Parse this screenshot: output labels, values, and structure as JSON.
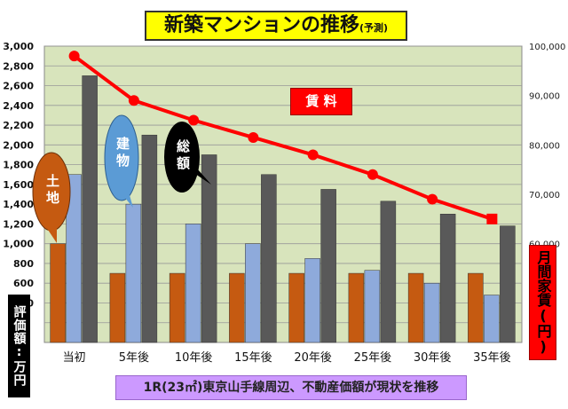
{
  "title": {
    "main": "新築マンションの推移",
    "sub": "(予測)"
  },
  "left_axis_label": "評価額:万円",
  "right_axis_label": "月間家賃(円)",
  "footnote": "1R(23㎡)東京山手線周辺、不動産価額が現状を推移",
  "callouts": {
    "land": "土地",
    "building": "建物",
    "total": "総額",
    "rent": "賃 料"
  },
  "chart_data": {
    "type": "bar",
    "title": "新築マンションの推移",
    "categories": [
      "当初",
      "5年後",
      "10年後",
      "15年後",
      "20年後",
      "25年後",
      "30年後",
      "35年後"
    ],
    "series": [
      {
        "name": "土地",
        "type": "bar",
        "axis": "left",
        "values": [
          1000,
          700,
          700,
          700,
          700,
          700,
          700,
          700
        ]
      },
      {
        "name": "建物",
        "type": "bar",
        "axis": "left",
        "values": [
          1700,
          1400,
          1200,
          1000,
          850,
          730,
          600,
          480
        ]
      },
      {
        "name": "総額",
        "type": "bar",
        "axis": "left",
        "values": [
          2700,
          2100,
          1900,
          1700,
          1550,
          1430,
          1300,
          1180
        ]
      },
      {
        "name": "賃料",
        "type": "line",
        "axis": "right",
        "values": [
          98000,
          89000,
          85000,
          81500,
          78000,
          74000,
          69000,
          65000
        ]
      }
    ],
    "ylim": [
      0,
      3000
    ],
    "y_ticks": [
      200,
      400,
      600,
      800,
      1000,
      1200,
      1400,
      1600,
      1800,
      2000,
      2200,
      2400,
      2600,
      2800,
      3000
    ],
    "y_tick_labels": [
      "",
      "400",
      "600",
      "800",
      "1,000",
      "1,200",
      "1,400",
      "1,600",
      "1,800",
      "2,000",
      "2,200",
      "2,400",
      "2,600",
      "2,800",
      "3,000"
    ],
    "y2lim": [
      40000,
      100000
    ],
    "y2_ticks": [
      60000,
      70000,
      80000,
      90000,
      100000
    ],
    "y2_tick_labels": [
      "60,000",
      "70,000",
      "80,000",
      "90,000",
      "100,000"
    ],
    "grid": true,
    "colors": {
      "plot_bg": "#d8e4bc",
      "land": "#c55a11",
      "building": "#8eaadb",
      "total": "#595959",
      "rent": "#ff0000",
      "grid": "#999999"
    }
  }
}
